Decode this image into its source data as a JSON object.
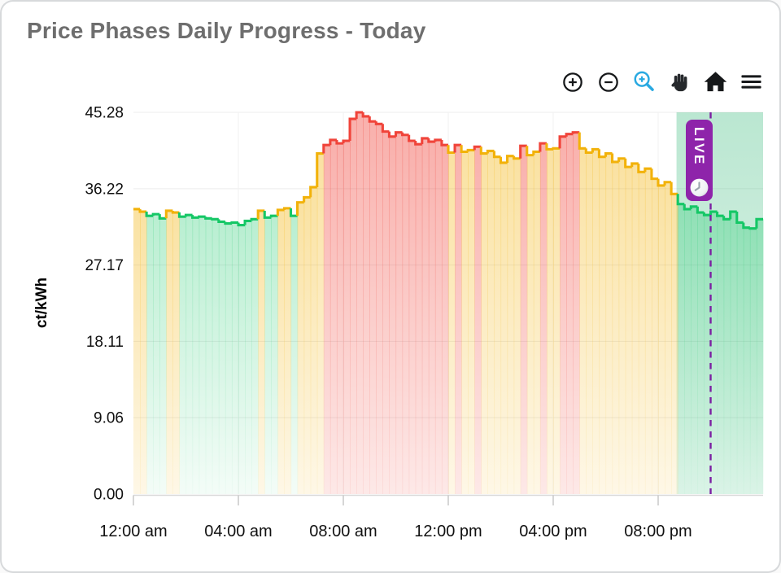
{
  "card": {
    "title": "Price Phases Daily Progress - Today"
  },
  "toolbar": {
    "buttons": [
      {
        "name": "zoom-in"
      },
      {
        "name": "zoom-out"
      },
      {
        "name": "box-zoom",
        "active": true
      },
      {
        "name": "pan"
      },
      {
        "name": "reset-axes-home"
      },
      {
        "name": "menu"
      }
    ]
  },
  "live_badge": {
    "label": "LIVE"
  },
  "colors": {
    "accent_blue": "#29a9e1",
    "badge_purple": "#8e24aa",
    "now_line_purple": "#7b1fa2",
    "phase_green": "#15c766",
    "phase_yellow": "#f2b20a",
    "phase_red": "#f0443a",
    "live_band_green": "#35b878",
    "title_gray": "#6e6e6e"
  },
  "chart_data": {
    "type": "area",
    "title": "Price Phases Daily Progress - Today",
    "xlabel": "",
    "ylabel": "ct/kWh",
    "unit": "ct/kWh",
    "hours": 24,
    "interval_minutes": 15,
    "x_ticks": [
      {
        "hour": 0,
        "label": "12:00 am"
      },
      {
        "hour": 4,
        "label": "04:00 am"
      },
      {
        "hour": 8,
        "label": "08:00 am"
      },
      {
        "hour": 12,
        "label": "12:00 pm"
      },
      {
        "hour": 16,
        "label": "04:00 pm"
      },
      {
        "hour": 20,
        "label": "08:00 pm"
      }
    ],
    "y_ticks": [
      "0.00",
      "9.06",
      "18.11",
      "27.17",
      "36.22",
      "45.28"
    ],
    "ylim": [
      0,
      45.28
    ],
    "grid": true,
    "phase_colors": {
      "g": "#15c766",
      "y": "#f2b20a",
      "r": "#f0443a"
    },
    "live_band_color": "#35b878",
    "now_hour": 22,
    "live_band_start_hour": 20.7,
    "series": [
      {
        "name": "price_ct_per_kwh",
        "step": true,
        "values": [
          33.8,
          33.5,
          33.0,
          33.2,
          32.7,
          33.6,
          33.4,
          32.9,
          33.1,
          32.8,
          32.9,
          32.7,
          32.6,
          32.3,
          32.1,
          32.2,
          31.9,
          32.4,
          32.6,
          33.6,
          32.8,
          33.0,
          33.7,
          33.9,
          33.0,
          34.6,
          35.2,
          36.4,
          40.4,
          41.4,
          42.0,
          41.6,
          41.9,
          44.5,
          45.28,
          44.8,
          44.2,
          43.9,
          43.0,
          42.4,
          42.9,
          42.6,
          41.9,
          41.5,
          42.2,
          41.8,
          42.0,
          41.4,
          40.5,
          41.4,
          40.6,
          40.8,
          41.2,
          40.4,
          40.7,
          40.0,
          39.3,
          40.1,
          39.8,
          41.3,
          40.2,
          40.6,
          41.6,
          40.9,
          41.0,
          42.4,
          42.7,
          42.9,
          41.0,
          40.5,
          40.9,
          40.0,
          40.4,
          39.4,
          39.8,
          38.8,
          39.2,
          38.2,
          38.6,
          37.4,
          36.6,
          37.0,
          35.6,
          34.4,
          33.8,
          34.1,
          33.4,
          33.1,
          33.5,
          33.0,
          32.6,
          33.5,
          32.2,
          31.6,
          31.5,
          32.6
        ],
        "phases": [
          "yygggyyggg",
          "gggggggggy",
          "ggyygyyyyr",
          "rrrrrrrrrr",
          "rrrrrrrryr",
          "yyryyyyyyr",
          "yyryyrrryy",
          "yyyyyyyyyy",
          "yyyggggggg",
          "gggggg"
        ]
      }
    ]
  }
}
